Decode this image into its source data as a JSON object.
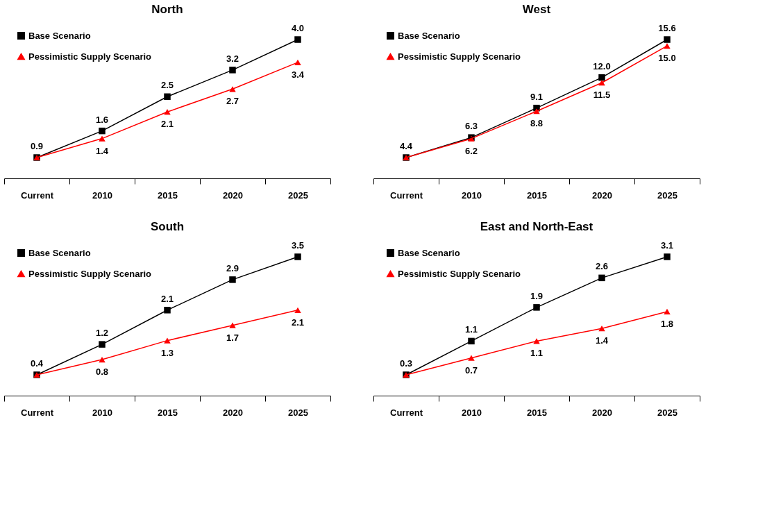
{
  "chart_data": [
    {
      "type": "line",
      "title": "North",
      "categories": [
        "Current",
        "2010",
        "2015",
        "2020",
        "2025"
      ],
      "series": [
        {
          "name": "Base Scenario",
          "color": "#000000",
          "marker": "square",
          "values": [
            0.9,
            1.6,
            2.5,
            3.2,
            4.0
          ],
          "value_labels": [
            "0.9",
            "1.6",
            "2.5",
            "3.2",
            "4.0"
          ]
        },
        {
          "name": "Pessimistic Supply Scenario",
          "color": "#ff0000",
          "marker": "triangle",
          "values": [
            0.9,
            1.4,
            2.1,
            2.7,
            3.4
          ],
          "value_labels": [
            null,
            "1.4",
            "2.1",
            "2.7",
            "3.4"
          ]
        }
      ],
      "legend": "top left",
      "grid": false,
      "tick_labels": "x"
    },
    {
      "type": "line",
      "title": "West",
      "categories": [
        "Current",
        "2010",
        "2015",
        "2020",
        "2025"
      ],
      "series": [
        {
          "name": "Base Scenario",
          "color": "#000000",
          "marker": "square",
          "values": [
            4.4,
            6.3,
            9.1,
            12.0,
            15.6
          ],
          "value_labels": [
            "4.4",
            "6.3",
            "9.1",
            "12.0",
            "15.6"
          ]
        },
        {
          "name": "Pessimistic Supply Scenario",
          "color": "#ff0000",
          "marker": "triangle",
          "values": [
            4.4,
            6.2,
            8.8,
            11.5,
            15.0
          ],
          "value_labels": [
            null,
            "6.2",
            "8.8",
            "11.5",
            "15.0"
          ]
        }
      ],
      "legend": "top left",
      "grid": false,
      "tick_labels": "x"
    },
    {
      "type": "line",
      "title": "South",
      "categories": [
        "Current",
        "2010",
        "2015",
        "2020",
        "2025"
      ],
      "series": [
        {
          "name": "Base Scenario",
          "color": "#000000",
          "marker": "square",
          "values": [
            0.4,
            1.2,
            2.1,
            2.9,
            3.5
          ],
          "value_labels": [
            "0.4",
            "1.2",
            "2.1",
            "2.9",
            "3.5"
          ]
        },
        {
          "name": "Pessimistic Supply Scenario",
          "color": "#ff0000",
          "marker": "triangle",
          "values": [
            0.4,
            0.8,
            1.3,
            1.7,
            2.1
          ],
          "value_labels": [
            null,
            "0.8",
            "1.3",
            "1.7",
            "2.1"
          ]
        }
      ],
      "legend": "top left",
      "grid": false,
      "tick_labels": "x"
    },
    {
      "type": "line",
      "title": "East and North-East",
      "categories": [
        "Current",
        "2010",
        "2015",
        "2020",
        "2025"
      ],
      "series": [
        {
          "name": "Base Scenario",
          "color": "#000000",
          "marker": "square",
          "values": [
            0.3,
            1.1,
            1.9,
            2.6,
            3.1
          ],
          "value_labels": [
            "0.3",
            "1.1",
            "1.9",
            "2.6",
            "3.1"
          ]
        },
        {
          "name": "Pessimistic Supply Scenario",
          "color": "#ff0000",
          "marker": "triangle",
          "values": [
            0.3,
            0.7,
            1.1,
            1.4,
            1.8
          ],
          "value_labels": [
            null,
            "0.7",
            "1.1",
            "1.4",
            "1.8"
          ]
        }
      ],
      "legend": "top left",
      "grid": false,
      "tick_labels": "x"
    }
  ]
}
